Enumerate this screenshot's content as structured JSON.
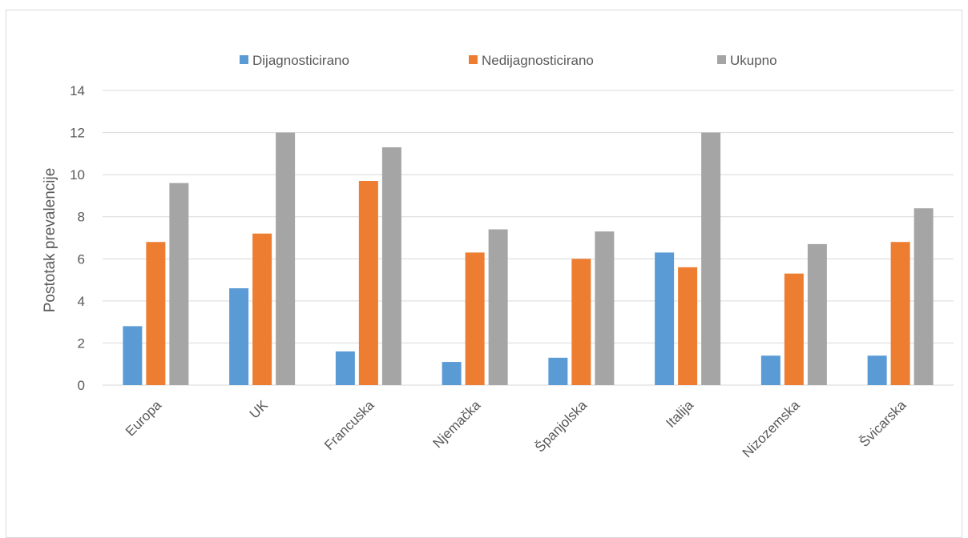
{
  "chart_data": {
    "type": "bar",
    "title": "",
    "xlabel": "",
    "ylabel": "Postotak prevalencije",
    "ylim": [
      0,
      14
    ],
    "yticks": [
      0,
      2,
      4,
      6,
      8,
      10,
      12,
      14
    ],
    "grid": true,
    "legend_position": "top",
    "categories": [
      "Europa",
      "UK",
      "Francuska",
      "Njemačka",
      "Španjolska",
      "Italija",
      "Nizozemska",
      "Švicarska"
    ],
    "series": [
      {
        "name": "Dijagnosticirano",
        "color": "#5b9bd5",
        "values": [
          2.8,
          4.6,
          1.6,
          1.1,
          1.3,
          6.3,
          1.4,
          1.4
        ]
      },
      {
        "name": "Nedijagnosticirano",
        "color": "#ed7d31",
        "values": [
          6.8,
          7.2,
          9.7,
          6.3,
          6.0,
          5.6,
          5.3,
          6.8
        ]
      },
      {
        "name": "Ukupno",
        "color": "#a5a5a5",
        "values": [
          9.6,
          12.0,
          11.3,
          7.4,
          7.3,
          12.0,
          6.7,
          8.4
        ]
      }
    ]
  }
}
